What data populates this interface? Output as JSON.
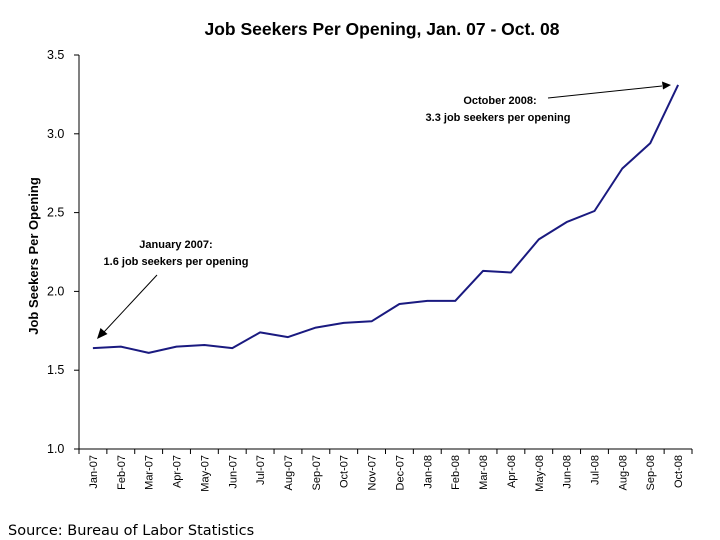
{
  "chart_data": {
    "type": "line",
    "title": "Job Seekers Per Opening, Jan. 07 - Oct. 08",
    "xlabel": "",
    "ylabel": "Job Seekers Per Opening",
    "categories": [
      "Jan-07",
      "Feb-07",
      "Mar-07",
      "Apr-07",
      "May-07",
      "Jun-07",
      "Jul-07",
      "Aug-07",
      "Sep-07",
      "Oct-07",
      "Nov-07",
      "Dec-07",
      "Jan-08",
      "Feb-08",
      "Mar-08",
      "Apr-08",
      "May-08",
      "Jun-08",
      "Jul-08",
      "Aug-08",
      "Sep-08",
      "Oct-08"
    ],
    "series": [
      {
        "values": [
          1.64,
          1.65,
          1.61,
          1.65,
          1.66,
          1.64,
          1.74,
          1.71,
          1.77,
          1.8,
          1.81,
          1.92,
          1.94,
          1.94,
          2.13,
          2.12,
          2.33,
          2.44,
          2.51,
          2.78,
          2.94,
          3.31
        ],
        "color": "#1a1a80"
      }
    ],
    "ylim": [
      1.0,
      3.5
    ],
    "yticks": [
      "1.0",
      "1.5",
      "2.0",
      "2.5",
      "3.0",
      "3.5"
    ],
    "grid": false,
    "annotations": [
      {
        "lines": [
          "October 2008:",
          "3.3 job seekers per opening"
        ],
        "target_category": "Oct-08"
      },
      {
        "lines": [
          "January 2007:",
          "1.6 job seekers per opening"
        ],
        "target_category": "Jan-07"
      }
    ]
  },
  "source": "Source: Bureau of Labor Statistics"
}
